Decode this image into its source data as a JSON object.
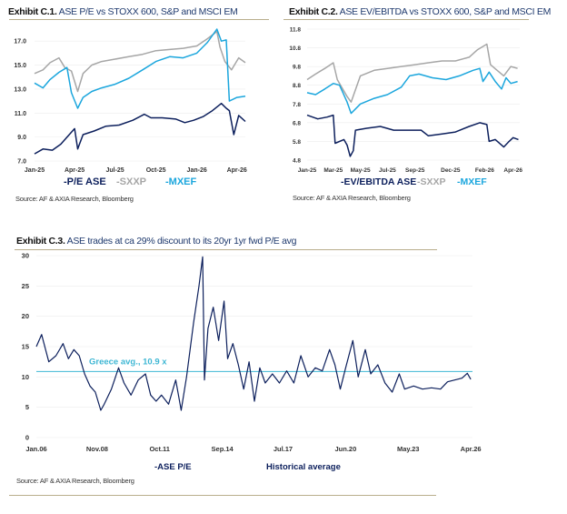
{
  "colors": {
    "ase": "#0c1f5c",
    "sxxp": "#a6a6a6",
    "mxef": "#1ba6dd",
    "avg_line": "#3fb7d4",
    "rule": "#b9ae8c"
  },
  "chart_data": [
    {
      "type": "line",
      "exhibit": "Exhibit C.1.",
      "title": "ASE P/E vs STOXX 600, S&P and MSCI EM",
      "source": "Source: AF & AXIA Research, Bloomberg",
      "xlim": [
        "2025-01-01",
        "2026-04-20"
      ],
      "ylim": [
        7.0,
        18.0
      ],
      "yticks": [
        "17.0",
        "15.0",
        "13.0",
        "11.0",
        "9.0",
        "7.0"
      ],
      "ytick_values": [
        17,
        15,
        13,
        11,
        9,
        7
      ],
      "xticks": [
        "Jan-25",
        "Apr-25",
        "Jul-25",
        "Oct-25",
        "Jan-26",
        "Apr-26"
      ],
      "xtick_dates": [
        "2025-01-01",
        "2025-04-01",
        "2025-07-01",
        "2025-10-01",
        "2026-01-01",
        "2026-04-01"
      ],
      "grid": true,
      "legend": "bottom",
      "series": [
        {
          "name": "SXXP",
          "legend": "-SXXP",
          "color_key": "sxxp",
          "x": [
            "2025-01-01",
            "2025-01-20",
            "2025-02-05",
            "2025-02-25",
            "2025-03-10",
            "2025-03-25",
            "2025-04-08",
            "2025-04-20",
            "2025-05-10",
            "2025-06-01",
            "2025-07-01",
            "2025-08-01",
            "2025-09-01",
            "2025-10-01",
            "2025-11-01",
            "2025-12-01",
            "2026-01-01",
            "2026-01-25",
            "2026-02-15",
            "2026-02-22",
            "2026-03-05",
            "2026-03-20",
            "2026-04-05",
            "2026-04-20"
          ],
          "y": [
            14.3,
            14.6,
            15.2,
            15.6,
            14.8,
            14.5,
            12.8,
            14.3,
            15.0,
            15.3,
            15.5,
            15.7,
            15.9,
            16.2,
            16.3,
            16.4,
            16.6,
            17.2,
            17.8,
            16.5,
            15.3,
            14.6,
            15.6,
            15.2
          ]
        },
        {
          "name": "MXEF",
          "legend": "-MXEF",
          "color_key": "mxef",
          "x": [
            "2025-01-01",
            "2025-01-20",
            "2025-02-05",
            "2025-02-25",
            "2025-03-15",
            "2025-03-25",
            "2025-04-08",
            "2025-04-20",
            "2025-05-10",
            "2025-06-01",
            "2025-07-01",
            "2025-08-01",
            "2025-09-01",
            "2025-10-01",
            "2025-11-01",
            "2025-12-01",
            "2026-01-01",
            "2026-01-25",
            "2026-02-15",
            "2026-02-25",
            "2026-03-08",
            "2026-03-15",
            "2026-04-01",
            "2026-04-20"
          ],
          "y": [
            13.5,
            13.1,
            13.8,
            14.4,
            14.8,
            12.7,
            11.4,
            12.3,
            12.8,
            13.1,
            13.4,
            13.9,
            14.6,
            15.3,
            15.7,
            15.6,
            16.0,
            16.9,
            18.0,
            17.0,
            17.1,
            12.0,
            12.3,
            12.4
          ]
        },
        {
          "name": "P/E ASE",
          "legend": "-P/E ASE",
          "color_key": "ase",
          "x": [
            "2025-01-01",
            "2025-01-20",
            "2025-02-10",
            "2025-03-01",
            "2025-03-20",
            "2025-04-01",
            "2025-04-08",
            "2025-04-20",
            "2025-05-15",
            "2025-06-10",
            "2025-07-10",
            "2025-08-10",
            "2025-09-05",
            "2025-09-20",
            "2025-10-15",
            "2025-11-15",
            "2025-12-05",
            "2025-12-25",
            "2026-01-15",
            "2026-02-05",
            "2026-02-25",
            "2026-03-08",
            "2026-03-15",
            "2026-03-25",
            "2026-04-05",
            "2026-04-20"
          ],
          "y": [
            7.6,
            8.0,
            7.9,
            8.4,
            9.2,
            9.7,
            8.0,
            9.2,
            9.5,
            9.9,
            10.0,
            10.4,
            10.9,
            10.6,
            10.6,
            10.5,
            10.2,
            10.4,
            10.7,
            11.2,
            11.8,
            11.4,
            11.2,
            9.2,
            10.8,
            10.3
          ]
        }
      ]
    },
    {
      "type": "line",
      "exhibit": "Exhibit C.2.",
      "title": "ASE EV/EBITDA vs STOXX 600, S&P and MSCI EM",
      "source": "Source: AF & AXIA Research, Bloomberg",
      "xlim": [
        "2025-01-01",
        "2026-04-25"
      ],
      "ylim": [
        4.8,
        11.8
      ],
      "yticks": [
        "11.8",
        "10.8",
        "9.8",
        "8.8",
        "7.8",
        "6.8",
        "5.8",
        "4.8"
      ],
      "ytick_values": [
        11.8,
        10.8,
        9.8,
        8.8,
        7.8,
        6.8,
        5.8,
        4.8
      ],
      "xticks": [
        "Jan-25",
        "Mar-25",
        "May-25",
        "Jul-25",
        "Sep-25",
        "Dec-25",
        "Feb-26",
        "Apr-26"
      ],
      "xtick_dates": [
        "2025-01-01",
        "2025-03-01",
        "2025-05-01",
        "2025-07-01",
        "2025-09-01",
        "2025-11-20",
        "2026-02-05",
        "2026-04-10"
      ],
      "grid": true,
      "legend": "bottom",
      "series": [
        {
          "name": "SXXP",
          "legend": "-SXXP",
          "color_key": "sxxp",
          "x": [
            "2025-01-01",
            "2025-01-20",
            "2025-02-10",
            "2025-03-01",
            "2025-03-10",
            "2025-04-01",
            "2025-04-10",
            "2025-05-01",
            "2025-06-01",
            "2025-07-01",
            "2025-08-01",
            "2025-09-01",
            "2025-10-01",
            "2025-11-01",
            "2025-12-01",
            "2026-01-01",
            "2026-01-20",
            "2026-02-10",
            "2026-02-18",
            "2026-03-05",
            "2026-03-20",
            "2026-04-05",
            "2026-04-20"
          ],
          "y": [
            9.1,
            9.4,
            9.7,
            10.0,
            9.1,
            8.2,
            7.9,
            9.3,
            9.6,
            9.7,
            9.8,
            9.9,
            10.0,
            10.1,
            10.1,
            10.3,
            10.7,
            11.0,
            9.9,
            9.6,
            9.3,
            9.8,
            9.7
          ]
        },
        {
          "name": "MXEF",
          "legend": "-MXEF",
          "color_key": "mxef",
          "x": [
            "2025-01-01",
            "2025-01-20",
            "2025-02-10",
            "2025-03-01",
            "2025-03-15",
            "2025-04-01",
            "2025-04-10",
            "2025-05-01",
            "2025-06-01",
            "2025-07-01",
            "2025-08-01",
            "2025-08-20",
            "2025-09-10",
            "2025-10-10",
            "2025-11-10",
            "2025-12-10",
            "2026-01-10",
            "2026-01-25",
            "2026-02-01",
            "2026-02-15",
            "2026-03-01",
            "2026-03-15",
            "2026-03-25",
            "2026-04-05",
            "2026-04-20"
          ],
          "y": [
            8.4,
            8.3,
            8.6,
            8.9,
            8.8,
            7.9,
            7.3,
            7.8,
            8.1,
            8.3,
            8.7,
            9.3,
            9.4,
            9.2,
            9.1,
            9.3,
            9.6,
            9.7,
            9.0,
            9.5,
            9.0,
            8.6,
            9.2,
            8.9,
            9.0
          ]
        },
        {
          "name": "EV/EBITDA ASE",
          "legend": "-EV/EBITDA ASE",
          "color_key": "ase",
          "x": [
            "2025-01-01",
            "2025-01-25",
            "2025-02-15",
            "2025-03-01",
            "2025-03-05",
            "2025-03-25",
            "2025-04-01",
            "2025-04-08",
            "2025-04-15",
            "2025-04-20",
            "2025-05-15",
            "2025-06-15",
            "2025-07-15",
            "2025-08-15",
            "2025-09-15",
            "2025-10-01",
            "2025-11-01",
            "2025-12-01",
            "2026-01-01",
            "2026-01-25",
            "2026-02-10",
            "2026-02-15",
            "2026-03-01",
            "2026-03-20",
            "2026-04-01",
            "2026-04-10",
            "2026-04-22"
          ],
          "y": [
            7.2,
            7.0,
            7.1,
            7.2,
            5.7,
            5.9,
            5.6,
            5.0,
            5.3,
            6.4,
            6.5,
            6.6,
            6.4,
            6.4,
            6.4,
            6.1,
            6.2,
            6.3,
            6.6,
            6.8,
            6.7,
            5.8,
            5.9,
            5.5,
            5.8,
            6.0,
            5.9
          ]
        }
      ]
    },
    {
      "type": "line",
      "exhibit": "Exhibit C.3.",
      "title": "ASE trades at ca 29% discount to its 20yr 1yr fwd P/E avg",
      "source": "Source: AF & AXIA Research, Bloomberg",
      "xlim": [
        "2006-01-01",
        "2026-04-30"
      ],
      "ylim": [
        0,
        30
      ],
      "yticks": [
        "30",
        "25",
        "20",
        "15",
        "10",
        "5",
        "0"
      ],
      "ytick_values": [
        30,
        25,
        20,
        15,
        10,
        5,
        0
      ],
      "xticks": [
        "Jan.06",
        "Nov.08",
        "Oct.11",
        "Sep.14",
        "Jul.17",
        "Jun.20",
        "May.23",
        "Apr.26"
      ],
      "xtick_dates": [
        "2006-01-01",
        "2008-11-01",
        "2011-10-01",
        "2014-09-01",
        "2017-07-01",
        "2020-06-01",
        "2023-05-01",
        "2026-04-01"
      ],
      "grid": true,
      "legend": "bottom",
      "annotation": "Greece avg., 10.9 x",
      "average": 10.9,
      "series": [
        {
          "name": "ASE P/E",
          "legend": "-ASE P/E",
          "color_key": "ase",
          "x": [
            "2006-01",
            "2006-04",
            "2006-08",
            "2006-12",
            "2007-04",
            "2007-07",
            "2007-10",
            "2008-01",
            "2008-04",
            "2008-07",
            "2008-10",
            "2009-01",
            "2009-03",
            "2009-07",
            "2009-11",
            "2010-02",
            "2010-06",
            "2010-10",
            "2011-02",
            "2011-05",
            "2011-08",
            "2011-11",
            "2012-03",
            "2012-07",
            "2012-10",
            "2013-01",
            "2013-05",
            "2013-08",
            "2013-10",
            "2013-11",
            "2014-01",
            "2014-04",
            "2014-07",
            "2014-10",
            "2014-12",
            "2015-03",
            "2015-06",
            "2015-09",
            "2015-12",
            "2016-03",
            "2016-06",
            "2016-09",
            "2017-01",
            "2017-05",
            "2017-09",
            "2018-01",
            "2018-05",
            "2018-09",
            "2019-01",
            "2019-05",
            "2019-09",
            "2019-12",
            "2020-03",
            "2020-06",
            "2020-10",
            "2021-01",
            "2021-05",
            "2021-08",
            "2021-12",
            "2022-04",
            "2022-08",
            "2022-12",
            "2023-03",
            "2023-08",
            "2024-01",
            "2024-06",
            "2024-11",
            "2025-03",
            "2025-07",
            "2025-11",
            "2026-02",
            "2026-04"
          ],
          "y": [
            15,
            17,
            12.5,
            13.5,
            15.5,
            13,
            14.5,
            13.5,
            10.5,
            8.5,
            7.5,
            4.5,
            5.5,
            8,
            11.5,
            9,
            7,
            9.5,
            10.5,
            7,
            6,
            7,
            5.5,
            9.5,
            4.5,
            10,
            19,
            25,
            29.8,
            9.5,
            18,
            21.5,
            16,
            22.5,
            13,
            15.5,
            12,
            8,
            12.5,
            6,
            11.5,
            9,
            10.5,
            9,
            11,
            9,
            13.5,
            10,
            11.5,
            11,
            14.5,
            12,
            8,
            11.5,
            16,
            10,
            14.5,
            10.5,
            12,
            9,
            7.5,
            10.5,
            8,
            8.5,
            8,
            8.2,
            8,
            9.2,
            9.5,
            9.8,
            10.6,
            9.6
          ]
        },
        {
          "name": "Historical average",
          "legend": "Historical average",
          "color_key": "avg_line"
        }
      ]
    }
  ]
}
